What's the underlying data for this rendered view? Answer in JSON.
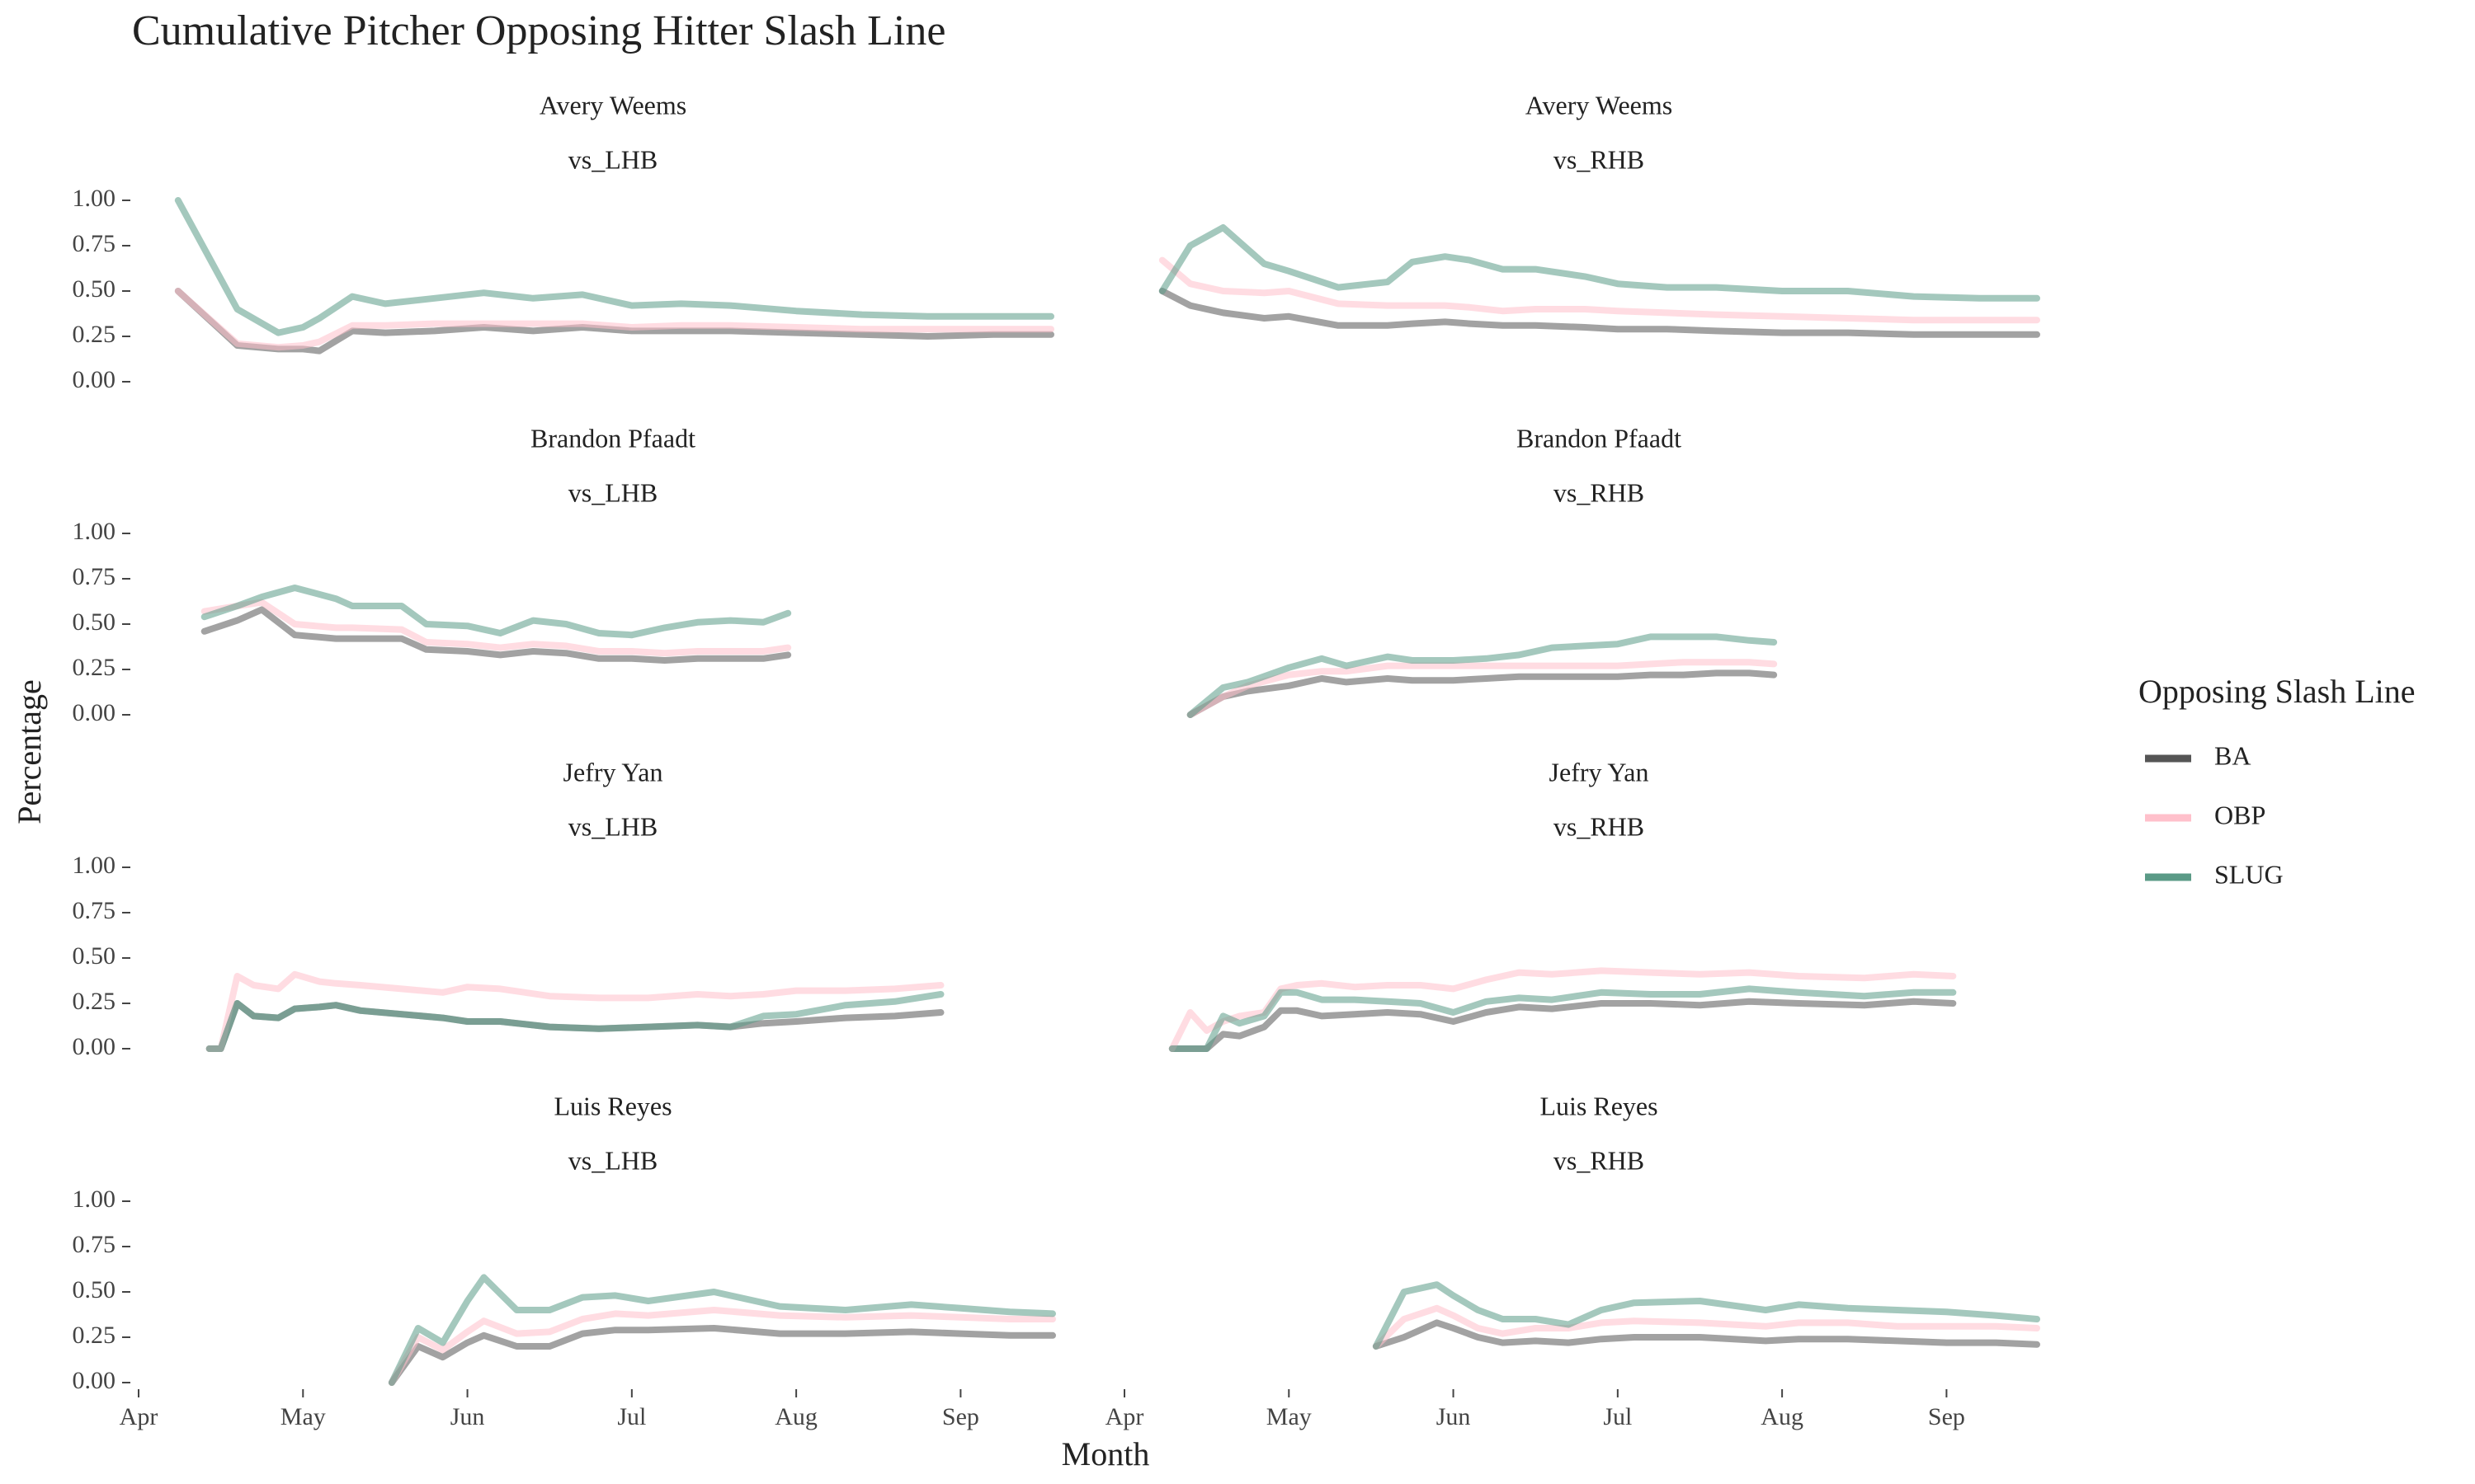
{
  "chart_data": {
    "type": "line",
    "title": "Cumulative Pitcher Opposing Hitter Slash Line",
    "x_label": "Month",
    "y_label": "Percentage",
    "legend_title": "Opposing Slash Line",
    "xlim": [
      4,
      9.55
    ],
    "ylim": [
      0,
      1
    ],
    "xticks": [
      {
        "value": 4,
        "label": "Apr"
      },
      {
        "value": 5,
        "label": "May"
      },
      {
        "value": 6,
        "label": "Jun"
      },
      {
        "value": 7,
        "label": "Jul"
      },
      {
        "value": 8,
        "label": "Aug"
      },
      {
        "value": 9,
        "label": "Sep"
      }
    ],
    "yticks": [
      {
        "value": 0,
        "label": "0.00"
      },
      {
        "value": 0.25,
        "label": "0.25"
      },
      {
        "value": 0.5,
        "label": "0.50"
      },
      {
        "value": 0.75,
        "label": "0.75"
      },
      {
        "value": 1,
        "label": "1.00"
      }
    ],
    "series": [
      {
        "name": "BA",
        "color": "#555555"
      },
      {
        "name": "OBP",
        "color": "#ffc0cb"
      },
      {
        "name": "SLUG",
        "color": "#5a9a86"
      }
    ],
    "facets": [
      {
        "title": "Avery Weems",
        "subtitle": "vs_LHB",
        "x": [
          4.24,
          4.6,
          4.85,
          5.0,
          5.1,
          5.3,
          5.5,
          5.8,
          6.1,
          6.4,
          6.7,
          7.0,
          7.3,
          7.6,
          8.0,
          8.4,
          8.8,
          9.2,
          9.55
        ],
        "series": [
          {
            "values": [
              0.5,
              0.2,
              0.18,
              0.18,
              0.17,
              0.28,
              0.27,
              0.28,
              0.3,
              0.28,
              0.3,
              0.28,
              0.28,
              0.28,
              0.27,
              0.26,
              0.25,
              0.26,
              0.26
            ]
          },
          {
            "values": [
              0.5,
              0.21,
              0.19,
              0.2,
              0.22,
              0.31,
              0.31,
              0.32,
              0.32,
              0.32,
              0.32,
              0.3,
              0.31,
              0.31,
              0.3,
              0.29,
              0.29,
              0.29,
              0.29
            ]
          },
          {
            "values": [
              1.0,
              0.4,
              0.27,
              0.3,
              0.35,
              0.47,
              0.43,
              0.46,
              0.49,
              0.46,
              0.48,
              0.42,
              0.43,
              0.42,
              0.39,
              0.37,
              0.36,
              0.36,
              0.36
            ]
          }
        ]
      },
      {
        "title": "Avery Weems",
        "subtitle": "vs_RHB",
        "x": [
          4.23,
          4.4,
          4.6,
          4.85,
          5.0,
          5.3,
          5.6,
          5.75,
          5.95,
          6.1,
          6.3,
          6.5,
          6.8,
          7.0,
          7.3,
          7.6,
          8.0,
          8.4,
          8.8,
          9.2,
          9.55
        ],
        "series": [
          {
            "values": [
              0.5,
              0.42,
              0.38,
              0.35,
              0.36,
              0.31,
              0.31,
              0.32,
              0.33,
              0.32,
              0.31,
              0.31,
              0.3,
              0.29,
              0.29,
              0.28,
              0.27,
              0.27,
              0.26,
              0.26,
              0.26
            ]
          },
          {
            "values": [
              0.67,
              0.54,
              0.5,
              0.49,
              0.5,
              0.43,
              0.42,
              0.42,
              0.42,
              0.41,
              0.39,
              0.4,
              0.4,
              0.39,
              0.38,
              0.37,
              0.36,
              0.35,
              0.34,
              0.34,
              0.34
            ]
          },
          {
            "values": [
              0.5,
              0.75,
              0.85,
              0.65,
              0.61,
              0.52,
              0.55,
              0.66,
              0.69,
              0.67,
              0.62,
              0.62,
              0.58,
              0.54,
              0.52,
              0.52,
              0.5,
              0.5,
              0.47,
              0.46,
              0.46
            ]
          }
        ]
      },
      {
        "title": "Brandon Pfaadt",
        "subtitle": "vs_LHB",
        "x": [
          4.4,
          4.6,
          4.75,
          4.95,
          5.2,
          5.3,
          5.6,
          5.75,
          6.0,
          6.2,
          6.4,
          6.6,
          6.8,
          7.0,
          7.2,
          7.4,
          7.6,
          7.8,
          7.95
        ],
        "series": [
          {
            "values": [
              0.46,
              0.52,
              0.58,
              0.44,
              0.42,
              0.42,
              0.42,
              0.36,
              0.35,
              0.33,
              0.35,
              0.34,
              0.31,
              0.31,
              0.3,
              0.31,
              0.31,
              0.31,
              0.33
            ]
          },
          {
            "values": [
              0.57,
              0.6,
              0.62,
              0.5,
              0.48,
              0.48,
              0.47,
              0.4,
              0.39,
              0.37,
              0.39,
              0.38,
              0.35,
              0.35,
              0.34,
              0.35,
              0.35,
              0.35,
              0.37
            ]
          },
          {
            "values": [
              0.54,
              0.6,
              0.65,
              0.7,
              0.64,
              0.6,
              0.6,
              0.5,
              0.49,
              0.45,
              0.52,
              0.5,
              0.45,
              0.44,
              0.48,
              0.51,
              0.52,
              0.51,
              0.56
            ]
          }
        ]
      },
      {
        "title": "Brandon Pfaadt",
        "subtitle": "vs_RHB",
        "x": [
          4.4,
          4.6,
          4.75,
          5.0,
          5.2,
          5.35,
          5.6,
          5.75,
          6.0,
          6.2,
          6.4,
          6.6,
          6.8,
          7.0,
          7.2,
          7.4,
          7.6,
          7.8,
          7.95
        ],
        "series": [
          {
            "values": [
              0,
              0.1,
              0.13,
              0.16,
              0.2,
              0.18,
              0.2,
              0.19,
              0.19,
              0.2,
              0.21,
              0.21,
              0.21,
              0.21,
              0.22,
              0.22,
              0.23,
              0.23,
              0.22
            ]
          },
          {
            "values": [
              0,
              0.1,
              0.16,
              0.22,
              0.24,
              0.24,
              0.27,
              0.27,
              0.27,
              0.27,
              0.27,
              0.27,
              0.27,
              0.27,
              0.28,
              0.29,
              0.29,
              0.29,
              0.28
            ]
          },
          {
            "values": [
              0,
              0.15,
              0.18,
              0.26,
              0.31,
              0.27,
              0.32,
              0.3,
              0.3,
              0.31,
              0.33,
              0.37,
              0.38,
              0.39,
              0.43,
              0.43,
              0.43,
              0.41,
              0.4
            ]
          }
        ]
      },
      {
        "title": "Jefry Yan",
        "subtitle": "vs_LHB",
        "x": [
          4.43,
          4.5,
          4.6,
          4.7,
          4.85,
          4.95,
          5.1,
          5.2,
          5.35,
          5.6,
          5.85,
          6.0,
          6.2,
          6.5,
          6.8,
          7.1,
          7.4,
          7.6,
          7.8,
          8.0,
          8.3,
          8.6,
          8.88
        ],
        "series": [
          {
            "values": [
              0,
              0,
              0.25,
              0.18,
              0.17,
              0.22,
              0.23,
              0.24,
              0.21,
              0.19,
              0.17,
              0.15,
              0.15,
              0.12,
              0.11,
              0.12,
              0.13,
              0.12,
              0.14,
              0.15,
              0.17,
              0.18,
              0.2
            ]
          },
          {
            "values": [
              0,
              0,
              0.4,
              0.35,
              0.33,
              0.41,
              0.37,
              0.36,
              0.35,
              0.33,
              0.31,
              0.34,
              0.33,
              0.29,
              0.28,
              0.28,
              0.3,
              0.29,
              0.3,
              0.32,
              0.32,
              0.33,
              0.35
            ]
          },
          {
            "values": [
              0,
              0,
              0.25,
              0.18,
              0.17,
              0.22,
              0.23,
              0.24,
              0.21,
              0.19,
              0.17,
              0.15,
              0.15,
              0.12,
              0.11,
              0.12,
              0.13,
              0.12,
              0.18,
              0.19,
              0.24,
              0.26,
              0.3
            ]
          }
        ]
      },
      {
        "title": "Jefry Yan",
        "subtitle": "vs_RHB",
        "x": [
          4.29,
          4.4,
          4.5,
          4.6,
          4.7,
          4.85,
          4.95,
          5.05,
          5.2,
          5.4,
          5.6,
          5.8,
          6.0,
          6.2,
          6.4,
          6.6,
          6.9,
          7.2,
          7.5,
          7.8,
          8.1,
          8.5,
          8.8,
          9.04
        ],
        "series": [
          {
            "values": [
              0,
              0,
              0,
              0.08,
              0.07,
              0.12,
              0.21,
              0.21,
              0.18,
              0.19,
              0.2,
              0.19,
              0.15,
              0.2,
              0.23,
              0.22,
              0.25,
              0.25,
              0.24,
              0.26,
              0.25,
              0.24,
              0.26,
              0.25
            ]
          },
          {
            "values": [
              0,
              0.2,
              0.1,
              0.15,
              0.18,
              0.2,
              0.33,
              0.35,
              0.36,
              0.34,
              0.35,
              0.35,
              0.33,
              0.38,
              0.42,
              0.41,
              0.43,
              0.42,
              0.41,
              0.42,
              0.4,
              0.39,
              0.41,
              0.4
            ]
          },
          {
            "values": [
              0,
              0,
              0,
              0.18,
              0.14,
              0.18,
              0.31,
              0.31,
              0.27,
              0.27,
              0.26,
              0.25,
              0.2,
              0.26,
              0.28,
              0.27,
              0.31,
              0.3,
              0.3,
              0.33,
              0.31,
              0.29,
              0.31,
              0.31
            ]
          }
        ]
      },
      {
        "title": "Luis Reyes",
        "subtitle": "vs_LHB",
        "x": [
          5.54,
          5.7,
          5.85,
          6.0,
          6.1,
          6.3,
          6.5,
          6.7,
          6.9,
          7.1,
          7.5,
          7.9,
          8.3,
          8.7,
          9.0,
          9.3,
          9.56
        ],
        "series": [
          {
            "values": [
              0,
              0.2,
              0.14,
              0.22,
              0.26,
              0.2,
              0.2,
              0.27,
              0.29,
              0.29,
              0.3,
              0.27,
              0.27,
              0.28,
              0.27,
              0.26,
              0.26
            ]
          },
          {
            "values": [
              0,
              0.25,
              0.18,
              0.28,
              0.34,
              0.27,
              0.28,
              0.35,
              0.38,
              0.37,
              0.4,
              0.37,
              0.36,
              0.37,
              0.36,
              0.35,
              0.35
            ]
          },
          {
            "values": [
              0,
              0.3,
              0.22,
              0.45,
              0.58,
              0.4,
              0.4,
              0.47,
              0.48,
              0.45,
              0.5,
              0.42,
              0.4,
              0.43,
              0.41,
              0.39,
              0.38
            ]
          }
        ]
      },
      {
        "title": "Luis Reyes",
        "subtitle": "vs_RHB",
        "x": [
          5.53,
          5.7,
          5.9,
          6.0,
          6.15,
          6.3,
          6.5,
          6.7,
          6.9,
          7.1,
          7.5,
          7.9,
          8.1,
          8.4,
          8.7,
          9.0,
          9.3,
          9.55
        ],
        "series": [
          {
            "values": [
              0.2,
              0.25,
              0.33,
              0.3,
              0.25,
              0.22,
              0.23,
              0.22,
              0.24,
              0.25,
              0.25,
              0.23,
              0.24,
              0.24,
              0.23,
              0.22,
              0.22,
              0.21
            ]
          },
          {
            "values": [
              0.2,
              0.35,
              0.41,
              0.37,
              0.3,
              0.27,
              0.3,
              0.3,
              0.33,
              0.34,
              0.33,
              0.31,
              0.33,
              0.33,
              0.31,
              0.31,
              0.31,
              0.3
            ]
          },
          {
            "values": [
              0.2,
              0.5,
              0.54,
              0.48,
              0.4,
              0.35,
              0.35,
              0.32,
              0.4,
              0.44,
              0.45,
              0.4,
              0.43,
              0.41,
              0.4,
              0.39,
              0.37,
              0.35
            ]
          }
        ]
      }
    ]
  }
}
